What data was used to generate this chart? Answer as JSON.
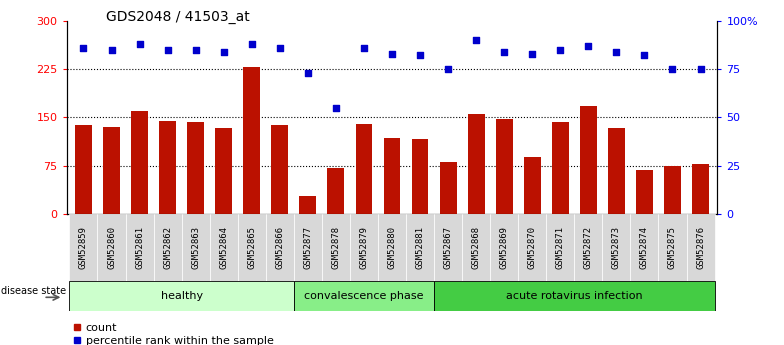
{
  "title": "GDS2048 / 41503_at",
  "samples": [
    "GSM52859",
    "GSM52860",
    "GSM52861",
    "GSM52862",
    "GSM52863",
    "GSM52864",
    "GSM52865",
    "GSM52866",
    "GSM52877",
    "GSM52878",
    "GSM52879",
    "GSM52880",
    "GSM52881",
    "GSM52867",
    "GSM52868",
    "GSM52869",
    "GSM52870",
    "GSM52871",
    "GSM52872",
    "GSM52873",
    "GSM52874",
    "GSM52875",
    "GSM52876"
  ],
  "counts": [
    138,
    135,
    160,
    145,
    143,
    133,
    228,
    138,
    28,
    72,
    140,
    118,
    117,
    80,
    155,
    147,
    88,
    143,
    168,
    133,
    68,
    75,
    78
  ],
  "percentiles": [
    86,
    85,
    88,
    85,
    85,
    84,
    88,
    86,
    73,
    55,
    86,
    83,
    82,
    75,
    90,
    84,
    83,
    85,
    87,
    84,
    82,
    75,
    75
  ],
  "groups": [
    {
      "label": "healthy",
      "start": 0,
      "end": 8,
      "color": "#ccffcc"
    },
    {
      "label": "convalescence phase",
      "start": 8,
      "end": 13,
      "color": "#88ee88"
    },
    {
      "label": "acute rotavirus infection",
      "start": 13,
      "end": 23,
      "color": "#44cc44"
    }
  ],
  "bar_color": "#bb1100",
  "scatter_color": "#0000cc",
  "ylim_left": [
    0,
    300
  ],
  "ylim_right": [
    0,
    100
  ],
  "yticks_left": [
    0,
    75,
    150,
    225,
    300
  ],
  "yticks_right": [
    0,
    25,
    50,
    75,
    100
  ],
  "ytick_labels_right": [
    "0",
    "25",
    "50",
    "75",
    "100%"
  ],
  "hlines": [
    75,
    150,
    225
  ],
  "bar_width": 0.6,
  "title_fontsize": 10,
  "disease_state_label": "disease state",
  "legend_count_label": "count",
  "legend_percentile_label": "percentile rank within the sample",
  "tick_label_box_color": "#dddddd",
  "tick_label_fontsize": 6.5
}
